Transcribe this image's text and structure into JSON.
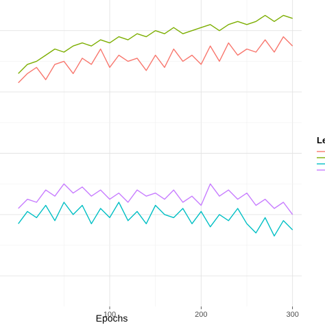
{
  "chart_data": {
    "type": "line",
    "xlabel": "Epochs",
    "ylabel": "",
    "xlim": [
      -20,
      310
    ],
    "ylim": [
      0,
      1
    ],
    "x_ticks": [
      100,
      200,
      300
    ],
    "x_tick_labels": [
      "100",
      "200",
      "300"
    ],
    "grid": true,
    "legend_title_visible": "Le",
    "legend_placement": "right (cropped)",
    "series": [
      {
        "color": "#F8766D",
        "x": [
          0,
          10,
          20,
          30,
          40,
          50,
          60,
          70,
          80,
          90,
          100,
          110,
          120,
          130,
          140,
          150,
          160,
          170,
          180,
          190,
          200,
          210,
          220,
          230,
          240,
          250,
          260,
          270,
          280,
          290,
          300
        ],
        "values": [
          0.73,
          0.76,
          0.78,
          0.74,
          0.79,
          0.8,
          0.76,
          0.81,
          0.79,
          0.84,
          0.78,
          0.82,
          0.8,
          0.81,
          0.77,
          0.82,
          0.78,
          0.84,
          0.8,
          0.82,
          0.79,
          0.85,
          0.8,
          0.86,
          0.82,
          0.84,
          0.83,
          0.87,
          0.83,
          0.88,
          0.85
        ]
      },
      {
        "color": "#7CAE00",
        "x": [
          0,
          10,
          20,
          30,
          40,
          50,
          60,
          70,
          80,
          90,
          100,
          110,
          120,
          130,
          140,
          150,
          160,
          170,
          180,
          190,
          200,
          210,
          220,
          230,
          240,
          250,
          260,
          270,
          280,
          290,
          300
        ],
        "values": [
          0.76,
          0.79,
          0.8,
          0.82,
          0.84,
          0.83,
          0.85,
          0.86,
          0.85,
          0.87,
          0.86,
          0.88,
          0.87,
          0.89,
          0.88,
          0.9,
          0.89,
          0.91,
          0.89,
          0.9,
          0.91,
          0.92,
          0.9,
          0.92,
          0.93,
          0.92,
          0.93,
          0.95,
          0.93,
          0.95,
          0.94
        ]
      },
      {
        "color": "#00BFC4",
        "x": [
          0,
          10,
          20,
          30,
          40,
          50,
          60,
          70,
          80,
          90,
          100,
          110,
          120,
          130,
          140,
          150,
          160,
          170,
          180,
          190,
          200,
          210,
          220,
          230,
          240,
          250,
          260,
          270,
          280,
          290,
          300
        ],
        "values": [
          0.27,
          0.31,
          0.29,
          0.33,
          0.28,
          0.34,
          0.3,
          0.33,
          0.27,
          0.32,
          0.29,
          0.34,
          0.28,
          0.31,
          0.27,
          0.33,
          0.3,
          0.29,
          0.32,
          0.27,
          0.31,
          0.26,
          0.3,
          0.28,
          0.32,
          0.27,
          0.24,
          0.29,
          0.23,
          0.28,
          0.25
        ]
      },
      {
        "color": "#C77CFF",
        "x": [
          0,
          10,
          20,
          30,
          40,
          50,
          60,
          70,
          80,
          90,
          100,
          110,
          120,
          130,
          140,
          150,
          160,
          170,
          180,
          190,
          200,
          210,
          220,
          230,
          240,
          250,
          260,
          270,
          280,
          290,
          300
        ],
        "values": [
          0.32,
          0.35,
          0.34,
          0.38,
          0.36,
          0.4,
          0.37,
          0.39,
          0.36,
          0.38,
          0.35,
          0.37,
          0.34,
          0.38,
          0.36,
          0.37,
          0.35,
          0.38,
          0.34,
          0.36,
          0.33,
          0.4,
          0.36,
          0.38,
          0.35,
          0.37,
          0.33,
          0.35,
          0.32,
          0.34,
          0.3
        ]
      }
    ]
  }
}
